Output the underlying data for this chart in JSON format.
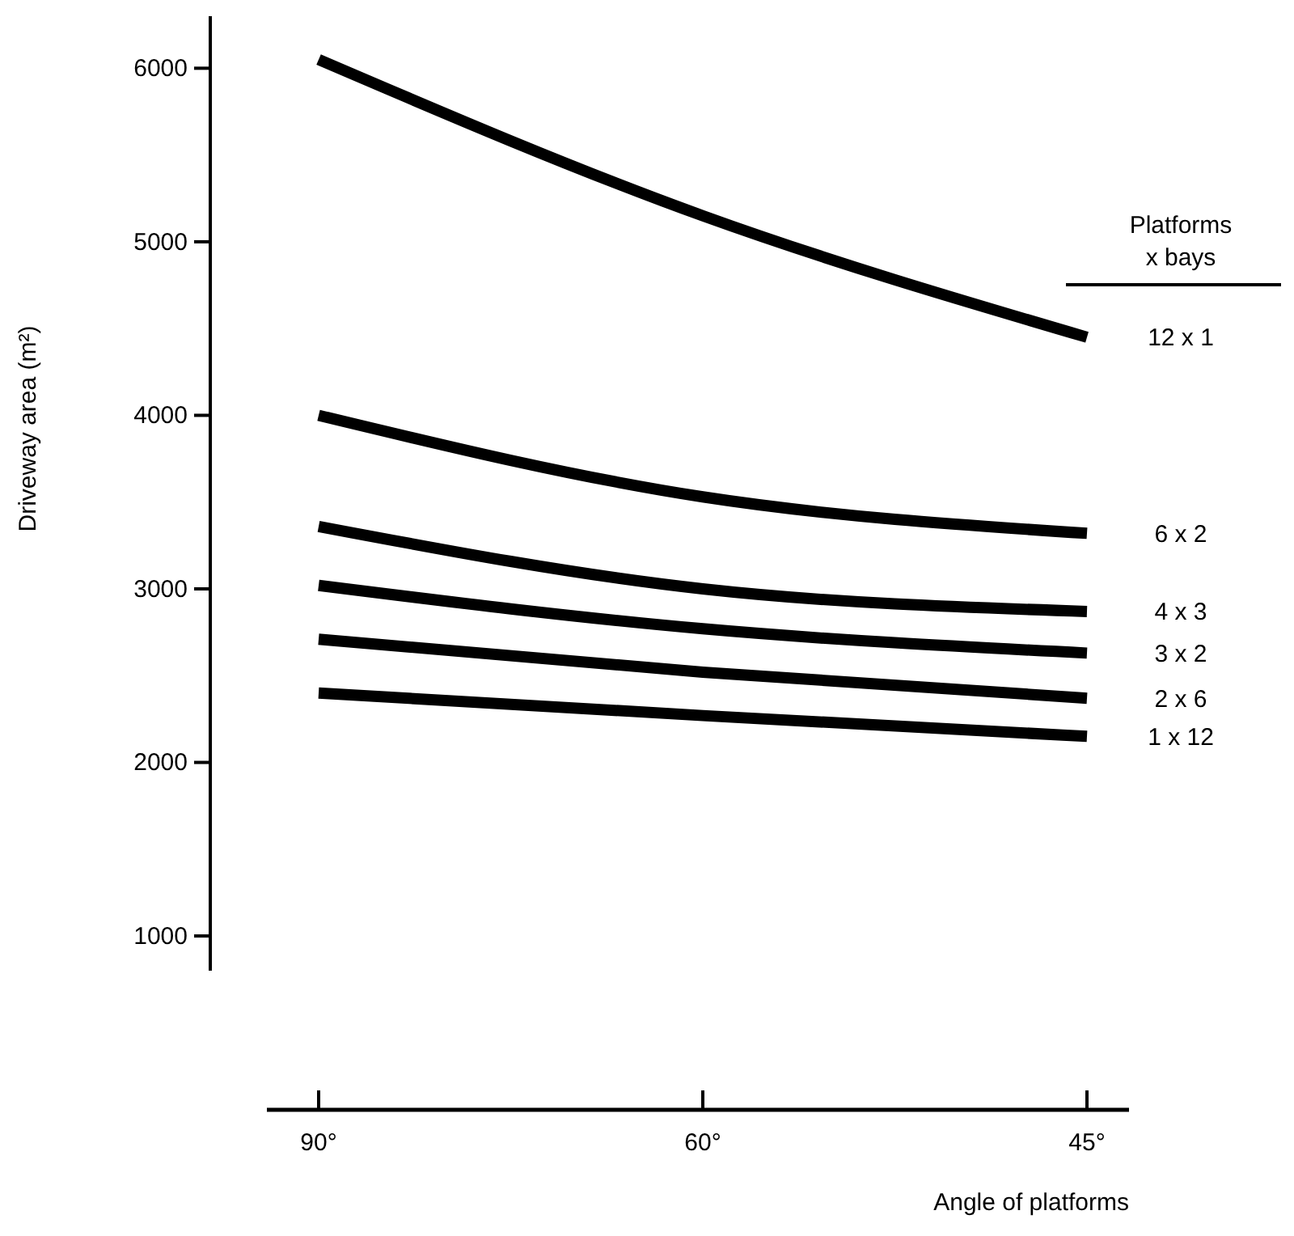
{
  "chart_data": {
    "type": "line",
    "categories": [
      "90°",
      "60°",
      "45°"
    ],
    "xlabel": "Angle of platforms",
    "ylabel": "Driveway area (m²)",
    "legend_title": "Platforms x bays",
    "legend": "right",
    "ylim": [
      800,
      6300
    ],
    "yticks": [
      1000,
      2000,
      3000,
      4000,
      5000,
      6000
    ],
    "grid": false,
    "line_style": "solid",
    "marker": "none",
    "series": [
      {
        "name": "12 x 1",
        "color": "#000000",
        "values": [
          6050,
          5150,
          4450
        ]
      },
      {
        "name": "6 x 2",
        "color": "#000000",
        "values": [
          4000,
          3530,
          3320
        ]
      },
      {
        "name": "4 x 3",
        "color": "#000000",
        "values": [
          3360,
          3000,
          2870
        ]
      },
      {
        "name": "3 x 2",
        "color": "#000000",
        "values": [
          3020,
          2770,
          2630
        ]
      },
      {
        "name": "2 x 6",
        "color": "#000000",
        "values": [
          2710,
          2520,
          2370
        ]
      },
      {
        "name": "1 x 12",
        "color": "#000000",
        "values": [
          2400,
          2270,
          2150
        ]
      }
    ]
  }
}
